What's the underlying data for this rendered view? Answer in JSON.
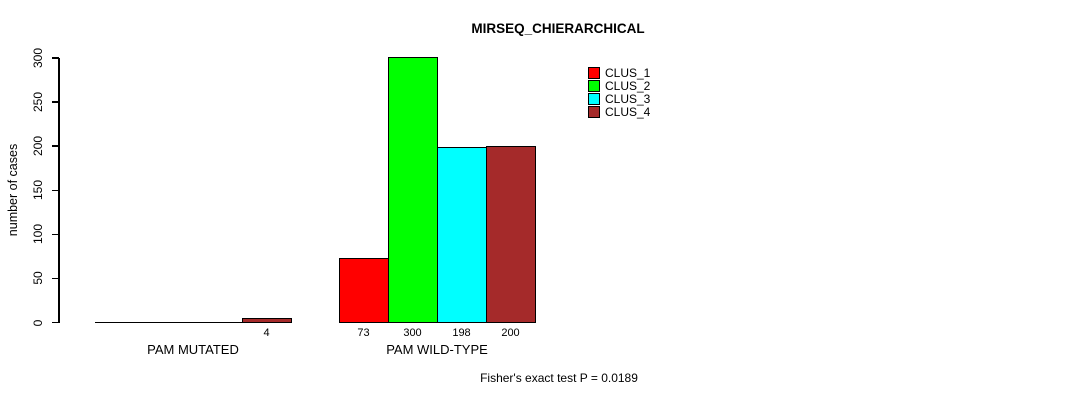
{
  "chart_data": {
    "type": "bar",
    "title": "MIRSEQ_CHIERARCHICAL",
    "xlabel": "",
    "ylabel": "number of cases",
    "ylim": [
      0,
      300
    ],
    "yticks": [
      0,
      50,
      100,
      150,
      200,
      250,
      300
    ],
    "grid": false,
    "legend_position": "top-right-inside",
    "categories": [
      "PAM MUTATED",
      "PAM WILD-TYPE"
    ],
    "series": [
      {
        "name": "CLUS_1",
        "color": "#ff0000",
        "values": [
          0,
          73
        ]
      },
      {
        "name": "CLUS_2",
        "color": "#00ff00",
        "values": [
          0,
          300
        ]
      },
      {
        "name": "CLUS_3",
        "color": "#00ffff",
        "values": [
          0,
          198
        ]
      },
      {
        "name": "CLUS_4",
        "color": "#a52a2a",
        "values": [
          4,
          200
        ]
      }
    ],
    "bar_labels": [
      [
        "",
        "",
        "",
        "4"
      ],
      [
        "73",
        "300",
        "198",
        "200"
      ]
    ],
    "annotation": "Fisher's exact test P = 0.0189"
  }
}
